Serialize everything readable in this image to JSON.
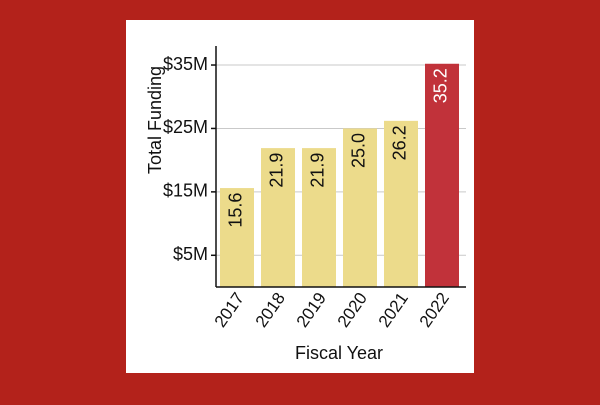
{
  "chart_data": {
    "type": "bar",
    "xlabel": "Fiscal Year",
    "ylabel": "Total Funding",
    "categories": [
      "2017",
      "2018",
      "2019",
      "2020",
      "2021",
      "2022"
    ],
    "values": [
      15.6,
      21.9,
      21.9,
      25.0,
      26.2,
      35.2
    ],
    "data_labels": [
      "15.6",
      "21.9",
      "21.9",
      "25.0",
      "26.2",
      "35.2"
    ],
    "highlight_index": 5,
    "ylim": [
      0,
      38
    ],
    "yticks": [
      5,
      15,
      25,
      35
    ],
    "ytick_labels": [
      "$5M",
      "$15M",
      "$25M",
      "$35M"
    ],
    "grid": true,
    "colors": {
      "bar": "#ecdb8b",
      "highlight": "#c1323a",
      "highlight_text": "#ffffff",
      "text": "#111111",
      "grid": "#c9c9c9",
      "background": "#b3221b",
      "panel": "#ffffff"
    }
  }
}
